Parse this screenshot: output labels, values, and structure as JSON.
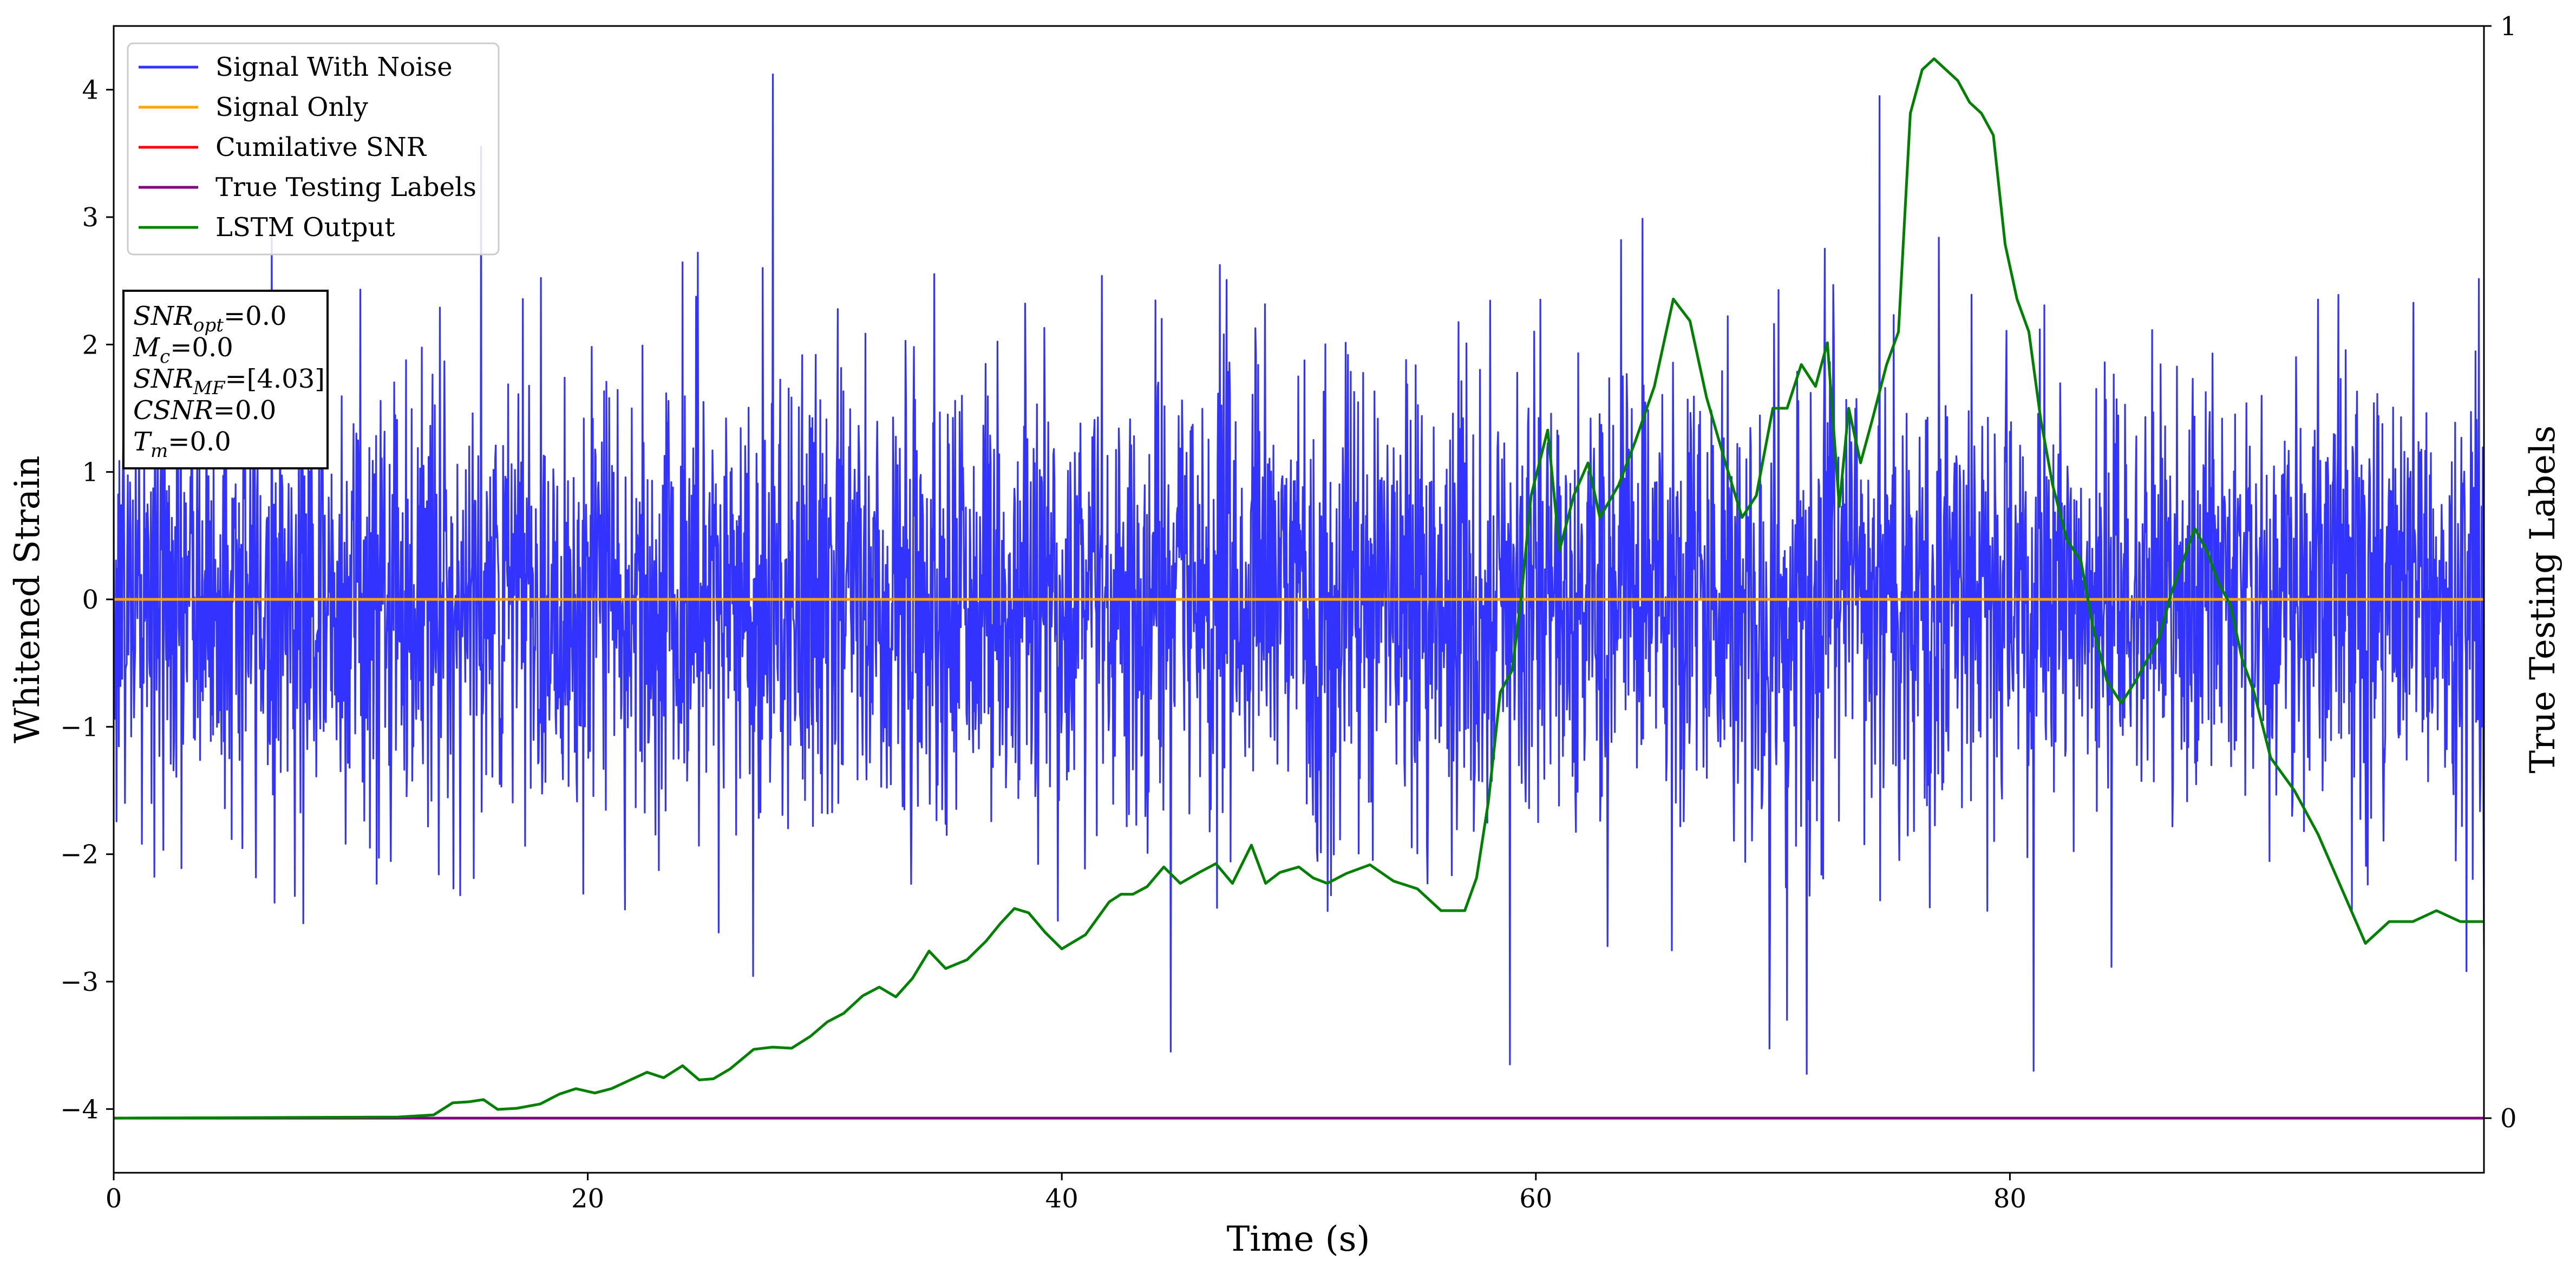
{
  "chart_data": {
    "type": "line",
    "title": "",
    "xlabel": "Time (s)",
    "ylabel": "Whitened Strain",
    "ylabel_right": "True Testing Labels",
    "xlim": [
      0,
      100
    ],
    "ylim": [
      -4.5,
      4.5
    ],
    "ylim_right": [
      -0.05,
      1.0
    ],
    "x_ticks": [
      0,
      20,
      40,
      60,
      80
    ],
    "x_tick_labels": [
      "0",
      "20",
      "40",
      "60",
      "80"
    ],
    "y_ticks": [
      -4,
      -3,
      -2,
      -1,
      0,
      1,
      2,
      3,
      4
    ],
    "y_tick_labels": [
      "−4",
      "−3",
      "−2",
      "−1",
      "0",
      "1",
      "2",
      "3",
      "4"
    ],
    "y_right_ticks": [
      0,
      1
    ],
    "y_right_tick_labels": [
      "0",
      "1"
    ],
    "grid": false,
    "legend_position": "top-left",
    "series": [
      {
        "name": "Signal With Noise",
        "color": "#3333ff",
        "axis": "left",
        "note_kind": "noise",
        "sigma": 0.9,
        "peaks": [
          [
            27.8,
            4.12
          ],
          [
            44.6,
            -3.55
          ],
          [
            58.9,
            -3.65
          ],
          [
            81.0,
            -3.7
          ],
          [
            74.5,
            3.95
          ],
          [
            15.5,
            3.55
          ],
          [
            70.6,
            -3.3
          ]
        ]
      },
      {
        "name": "Signal Only",
        "color": "#ffa500",
        "axis": "left",
        "x": [
          0,
          100
        ],
        "y": [
          0,
          0
        ]
      },
      {
        "name": "Cumilative SNR",
        "color": "#ff0000",
        "axis": "left",
        "x": [],
        "y": []
      },
      {
        "name": "True Testing Labels",
        "color": "#800080",
        "axis": "right",
        "x": [
          0,
          100
        ],
        "y": [
          0,
          0
        ]
      },
      {
        "name": "LSTM Output",
        "color": "#008000",
        "axis": "right",
        "x": [
          0,
          12,
          13.5,
          14.3,
          15,
          15.6,
          16.2,
          17,
          18,
          18.8,
          19.5,
          20.3,
          21,
          21.8,
          22.5,
          23.2,
          24,
          24.7,
          25.3,
          26,
          27,
          27.8,
          28.6,
          29.4,
          30.1,
          30.8,
          31.6,
          32.3,
          33,
          33.7,
          34.4,
          35.1,
          36,
          36.8,
          37.4,
          38,
          38.6,
          39.3,
          40,
          41,
          42,
          42.5,
          43,
          43.6,
          44.3,
          45,
          45.8,
          46.5,
          47.2,
          48,
          48.6,
          49.2,
          50,
          50.6,
          51.2,
          52,
          53,
          54,
          55,
          56,
          57,
          57.5,
          58,
          58.5,
          59,
          59.4,
          59.8,
          60.5,
          61,
          61.6,
          62.2,
          62.7,
          63.5,
          64.2,
          65,
          65.8,
          66.5,
          67.2,
          68,
          68.7,
          69.3,
          70,
          70.6,
          71.2,
          71.8,
          72.3,
          72.8,
          73.2,
          73.7,
          74.2,
          74.8,
          75.3,
          75.8,
          76.3,
          76.8,
          77.3,
          77.8,
          78.3,
          78.8,
          79.3,
          79.8,
          80.3,
          80.8,
          81.3,
          81.8,
          82.4,
          83,
          83.5,
          84.1,
          84.7,
          85.3,
          85.8,
          86.3,
          86.8,
          87.3,
          87.8,
          88.3,
          88.8,
          89.3,
          89.8,
          90.3,
          91,
          92,
          93,
          94,
          95,
          96,
          97,
          98,
          99,
          100
        ],
        "y": [
          0,
          0.001,
          0.003,
          0.014,
          0.015,
          0.017,
          0.008,
          0.009,
          0.013,
          0.022,
          0.027,
          0.023,
          0.027,
          0.035,
          0.042,
          0.037,
          0.048,
          0.035,
          0.036,
          0.045,
          0.063,
          0.065,
          0.064,
          0.075,
          0.088,
          0.096,
          0.112,
          0.12,
          0.111,
          0.128,
          0.153,
          0.137,
          0.145,
          0.162,
          0.178,
          0.192,
          0.188,
          0.17,
          0.155,
          0.168,
          0.198,
          0.205,
          0.205,
          0.212,
          0.23,
          0.215,
          0.225,
          0.233,
          0.215,
          0.25,
          0.215,
          0.225,
          0.23,
          0.22,
          0.215,
          0.224,
          0.232,
          0.217,
          0.21,
          0.19,
          0.19,
          0.22,
          0.29,
          0.39,
          0.41,
          0.48,
          0.57,
          0.63,
          0.52,
          0.57,
          0.6,
          0.55,
          0.58,
          0.62,
          0.67,
          0.75,
          0.73,
          0.66,
          0.6,
          0.55,
          0.57,
          0.65,
          0.65,
          0.69,
          0.67,
          0.71,
          0.56,
          0.65,
          0.6,
          0.64,
          0.69,
          0.72,
          0.92,
          0.96,
          0.97,
          0.96,
          0.95,
          0.93,
          0.92,
          0.9,
          0.8,
          0.75,
          0.72,
          0.64,
          0.58,
          0.53,
          0.51,
          0.45,
          0.4,
          0.38,
          0.4,
          0.42,
          0.44,
          0.48,
          0.51,
          0.54,
          0.52,
          0.49,
          0.47,
          0.42,
          0.39,
          0.33,
          0.3,
          0.26,
          0.21,
          0.16,
          0.18,
          0.18,
          0.19,
          0.18,
          0.18
        ]
      }
    ],
    "annotation_box": {
      "lines": [
        {
          "base": "SNR",
          "sub": "opt",
          "rest": "=0.0"
        },
        {
          "base": "M",
          "sub": "c",
          "rest": "=0.0"
        },
        {
          "base": "SNR",
          "sub": "MF",
          "rest": "=[4.03]"
        },
        {
          "base": "CSNR",
          "sub": "",
          "rest": "=0.0"
        },
        {
          "base": "T",
          "sub": "m",
          "rest": "=0.0"
        }
      ]
    }
  }
}
